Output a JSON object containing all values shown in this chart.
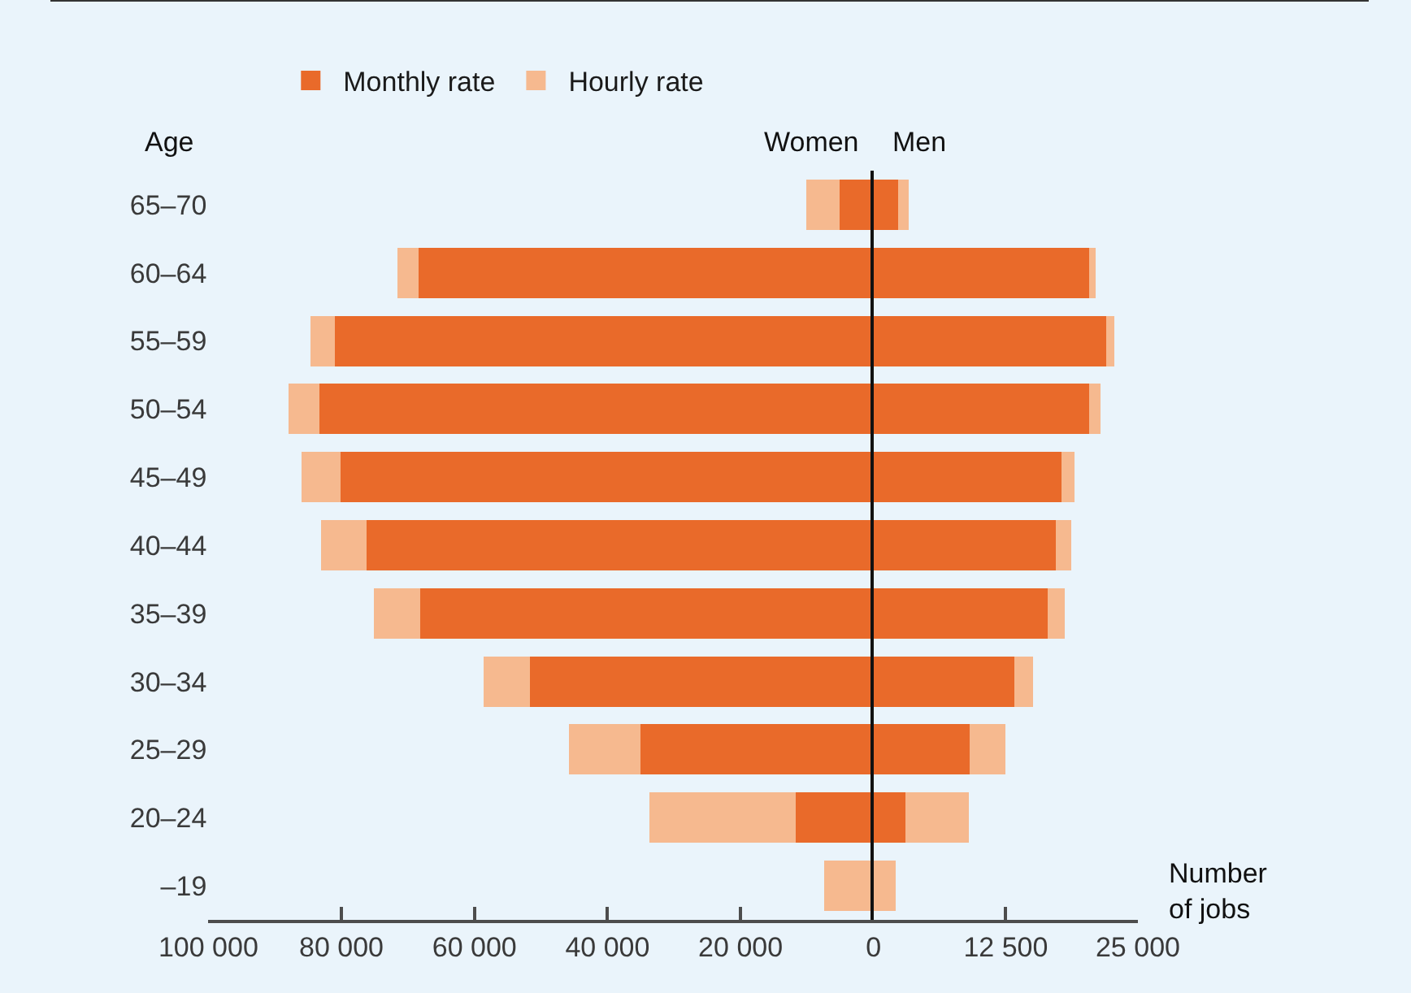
{
  "chart_data": [
    {
      "type": "bar",
      "orientation": "horizontal",
      "stacked": true,
      "title": "Women",
      "ylabel": "Age",
      "legend": "top left",
      "categories": [
        "65–70",
        "60–64",
        "55–59",
        "50–54",
        "45–49",
        "40–44",
        "35–39",
        "30–34",
        "25–29",
        "20–24",
        "–19"
      ],
      "series": [
        {
          "name": "Monthly rate",
          "color": "#e96a2a",
          "values": [
            5100,
            68400,
            81000,
            83300,
            80100,
            76200,
            68200,
            51700,
            35100,
            11700,
            0
          ]
        },
        {
          "name": "Hourly rate",
          "color": "#f6b98f",
          "values": [
            5000,
            3200,
            3700,
            4600,
            5900,
            6900,
            6900,
            6900,
            10700,
            22000,
            7400
          ]
        }
      ],
      "xlim": [
        100000,
        0
      ],
      "xticks": [
        {
          "value": 100000,
          "label": "100 000"
        },
        {
          "value": 80000,
          "label": "80 000"
        },
        {
          "value": 60000,
          "label": "60 000"
        },
        {
          "value": 40000,
          "label": "40 000"
        },
        {
          "value": 20000,
          "label": "20 000"
        },
        0
      ],
      "grid": false
    },
    {
      "type": "bar",
      "orientation": "horizontal",
      "stacked": true,
      "title": "Men",
      "xlabel": "Number\nof jobs",
      "tick_labels": "x",
      "categories": [
        null,
        null,
        null,
        null,
        null,
        null,
        null,
        null,
        null,
        null,
        null
      ],
      "series": [
        {
          "color": "#e96a2a",
          "values": [
            2300,
            20400,
            22000,
            20400,
            17800,
            17200,
            16500,
            13300,
            9100,
            3000,
            0
          ]
        },
        {
          "color": "#f6b98f",
          "values": [
            1000,
            600,
            800,
            1100,
            1200,
            1500,
            1600,
            1800,
            3400,
            6000,
            2100
          ]
        }
      ],
      "xlim": [
        0,
        25000
      ],
      "xticks": [
        {
          "value": 12500,
          "label": "12 500"
        },
        {
          "value": 25000,
          "label": "25 000"
        }
      ],
      "grid": false
    }
  ]
}
